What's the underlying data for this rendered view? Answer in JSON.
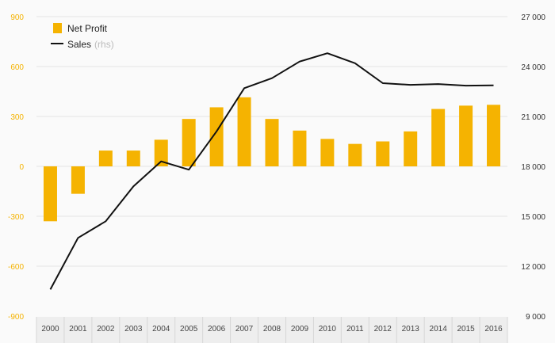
{
  "chart_data": {
    "type": "bar+line",
    "categories": [
      "2000",
      "2001",
      "2002",
      "2003",
      "2004",
      "2005",
      "2006",
      "2007",
      "2008",
      "2009",
      "2010",
      "2011",
      "2012",
      "2013",
      "2014",
      "2015",
      "2016"
    ],
    "series": [
      {
        "name": "Net Profit",
        "type": "bar",
        "axis": "left",
        "color": "#f5b301",
        "values": [
          -330,
          -165,
          95,
          95,
          160,
          285,
          355,
          415,
          285,
          215,
          165,
          135,
          150,
          210,
          345,
          365,
          370
        ]
      },
      {
        "name": "Sales",
        "type": "line",
        "axis": "right",
        "color": "#111111",
        "values": [
          10600,
          13700,
          14700,
          16800,
          18300,
          17800,
          20100,
          22700,
          23300,
          24300,
          24800,
          24200,
          23000,
          22900,
          22950,
          22850,
          22870
        ]
      }
    ],
    "y_left": {
      "ylim": [
        -900,
        900
      ],
      "ticks": [
        "-900",
        "-600",
        "-300",
        "0",
        "300",
        "600",
        "900"
      ],
      "color": "#f5b301"
    },
    "y_right": {
      "ylim": [
        9000,
        27000
      ],
      "ticks": [
        "9 000",
        "12 000",
        "15 000",
        "18 000",
        "21 000",
        "24 000",
        "27 000"
      ]
    },
    "legend": {
      "position": "top-left",
      "items": [
        {
          "label": "Net Profit",
          "note": ""
        },
        {
          "label": "Sales",
          "note": "(rhs)"
        }
      ]
    },
    "grid": true,
    "title": "",
    "xlabel": "",
    "ylabel": ""
  }
}
